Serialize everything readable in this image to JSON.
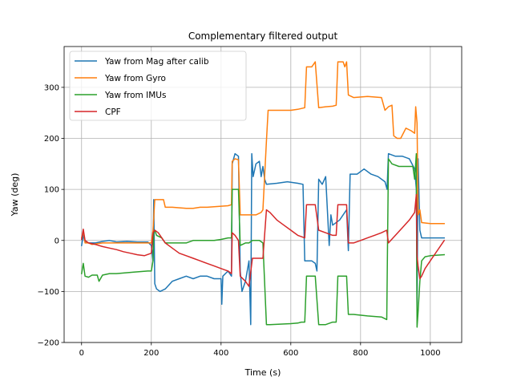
{
  "chart_data": {
    "type": "line",
    "title": "Complementary filtered output",
    "xlabel": "Time (s)",
    "ylabel": "Yaw (deg)",
    "xlim": [
      -50,
      1090
    ],
    "ylim": [
      -200,
      380
    ],
    "xticks": [
      0,
      200,
      400,
      600,
      800,
      1000
    ],
    "yticks": [
      -200,
      -100,
      0,
      100,
      200,
      300
    ],
    "grid": true,
    "legend_position": "upper-left",
    "series": [
      {
        "name": "Yaw from Mag after calib",
        "color": "#1f77b4",
        "points": [
          [
            0,
            -10
          ],
          [
            5,
            10
          ],
          [
            10,
            -3
          ],
          [
            20,
            -5
          ],
          [
            40,
            -5
          ],
          [
            60,
            -2
          ],
          [
            80,
            0
          ],
          [
            100,
            -3
          ],
          [
            130,
            -2
          ],
          [
            160,
            -3
          ],
          [
            190,
            -3
          ],
          [
            200,
            -10
          ],
          [
            205,
            -40
          ],
          [
            207,
            80
          ],
          [
            210,
            -85
          ],
          [
            215,
            -95
          ],
          [
            225,
            -100
          ],
          [
            240,
            -95
          ],
          [
            260,
            -80
          ],
          [
            280,
            -75
          ],
          [
            300,
            -70
          ],
          [
            320,
            -75
          ],
          [
            340,
            -70
          ],
          [
            360,
            -70
          ],
          [
            380,
            -75
          ],
          [
            400,
            -75
          ],
          [
            402,
            -125
          ],
          [
            405,
            -70
          ],
          [
            420,
            -60
          ],
          [
            430,
            -70
          ],
          [
            432,
            150
          ],
          [
            440,
            170
          ],
          [
            450,
            165
          ],
          [
            455,
            -60
          ],
          [
            460,
            -100
          ],
          [
            470,
            -80
          ],
          [
            480,
            -40
          ],
          [
            485,
            -165
          ],
          [
            488,
            170
          ],
          [
            492,
            125
          ],
          [
            500,
            150
          ],
          [
            510,
            155
          ],
          [
            515,
            125
          ],
          [
            520,
            145
          ],
          [
            525,
            120
          ],
          [
            530,
            110
          ],
          [
            560,
            112
          ],
          [
            590,
            115
          ],
          [
            620,
            112
          ],
          [
            635,
            110
          ],
          [
            640,
            -40
          ],
          [
            660,
            -40
          ],
          [
            670,
            -45
          ],
          [
            675,
            -60
          ],
          [
            680,
            120
          ],
          [
            690,
            110
          ],
          [
            700,
            125
          ],
          [
            710,
            -10
          ],
          [
            715,
            50
          ],
          [
            720,
            30
          ],
          [
            740,
            40
          ],
          [
            760,
            60
          ],
          [
            765,
            -20
          ],
          [
            770,
            130
          ],
          [
            790,
            130
          ],
          [
            810,
            140
          ],
          [
            830,
            130
          ],
          [
            850,
            125
          ],
          [
            870,
            115
          ],
          [
            876,
            100
          ],
          [
            880,
            170
          ],
          [
            900,
            165
          ],
          [
            920,
            165
          ],
          [
            940,
            160
          ],
          [
            955,
            140
          ],
          [
            960,
            100
          ],
          [
            962,
            -140
          ],
          [
            965,
            160
          ],
          [
            970,
            20
          ],
          [
            975,
            5
          ],
          [
            985,
            5
          ],
          [
            1000,
            5
          ],
          [
            1020,
            5
          ],
          [
            1040,
            5
          ]
        ]
      },
      {
        "name": "Yaw from Gyro",
        "color": "#ff7f0e",
        "points": [
          [
            0,
            5
          ],
          [
            5,
            18
          ],
          [
            10,
            -5
          ],
          [
            20,
            -5
          ],
          [
            30,
            -8
          ],
          [
            60,
            -5
          ],
          [
            100,
            -5
          ],
          [
            150,
            -5
          ],
          [
            180,
            -5
          ],
          [
            200,
            -5
          ],
          [
            205,
            20
          ],
          [
            210,
            80
          ],
          [
            220,
            80
          ],
          [
            235,
            80
          ],
          [
            240,
            65
          ],
          [
            260,
            65
          ],
          [
            300,
            63
          ],
          [
            320,
            63
          ],
          [
            340,
            65
          ],
          [
            360,
            65
          ],
          [
            400,
            67
          ],
          [
            420,
            68
          ],
          [
            430,
            70
          ],
          [
            432,
            155
          ],
          [
            440,
            160
          ],
          [
            450,
            158
          ],
          [
            455,
            50
          ],
          [
            480,
            50
          ],
          [
            500,
            50
          ],
          [
            515,
            55
          ],
          [
            520,
            60
          ],
          [
            530,
            195
          ],
          [
            535,
            255
          ],
          [
            600,
            255
          ],
          [
            620,
            257
          ],
          [
            640,
            260
          ],
          [
            645,
            340
          ],
          [
            660,
            340
          ],
          [
            670,
            350
          ],
          [
            680,
            260
          ],
          [
            700,
            262
          ],
          [
            720,
            263
          ],
          [
            730,
            265
          ],
          [
            735,
            350
          ],
          [
            750,
            350
          ],
          [
            755,
            340
          ],
          [
            760,
            350
          ],
          [
            765,
            285
          ],
          [
            780,
            280
          ],
          [
            820,
            282
          ],
          [
            860,
            280
          ],
          [
            870,
            255
          ],
          [
            880,
            262
          ],
          [
            890,
            265
          ],
          [
            895,
            205
          ],
          [
            905,
            200
          ],
          [
            915,
            200
          ],
          [
            930,
            220
          ],
          [
            945,
            215
          ],
          [
            955,
            210
          ],
          [
            958,
            262
          ],
          [
            962,
            230
          ],
          [
            965,
            50
          ],
          [
            970,
            60
          ],
          [
            975,
            35
          ],
          [
            1000,
            33
          ],
          [
            1040,
            33
          ]
        ]
      },
      {
        "name": "Yaw from IMUs",
        "color": "#2ca02c",
        "points": [
          [
            0,
            -65
          ],
          [
            5,
            -45
          ],
          [
            10,
            -70
          ],
          [
            20,
            -72
          ],
          [
            30,
            -68
          ],
          [
            45,
            -68
          ],
          [
            50,
            -80
          ],
          [
            60,
            -68
          ],
          [
            80,
            -65
          ],
          [
            100,
            -65
          ],
          [
            150,
            -62
          ],
          [
            190,
            -60
          ],
          [
            200,
            -60
          ],
          [
            205,
            -40
          ],
          [
            207,
            15
          ],
          [
            210,
            20
          ],
          [
            215,
            10
          ],
          [
            230,
            5
          ],
          [
            240,
            -5
          ],
          [
            260,
            -5
          ],
          [
            300,
            -5
          ],
          [
            320,
            0
          ],
          [
            340,
            0
          ],
          [
            380,
            0
          ],
          [
            400,
            2
          ],
          [
            420,
            5
          ],
          [
            430,
            5
          ],
          [
            432,
            100
          ],
          [
            440,
            100
          ],
          [
            450,
            100
          ],
          [
            455,
            -10
          ],
          [
            470,
            -5
          ],
          [
            480,
            -5
          ],
          [
            490,
            0
          ],
          [
            500,
            0
          ],
          [
            510,
            0
          ],
          [
            520,
            -5
          ],
          [
            530,
            -165
          ],
          [
            540,
            -165
          ],
          [
            600,
            -163
          ],
          [
            620,
            -162
          ],
          [
            630,
            -160
          ],
          [
            640,
            -160
          ],
          [
            645,
            -70
          ],
          [
            660,
            -70
          ],
          [
            670,
            -70
          ],
          [
            680,
            -165
          ],
          [
            700,
            -165
          ],
          [
            720,
            -160
          ],
          [
            730,
            -160
          ],
          [
            735,
            -70
          ],
          [
            750,
            -70
          ],
          [
            760,
            -70
          ],
          [
            765,
            -145
          ],
          [
            780,
            -145
          ],
          [
            820,
            -148
          ],
          [
            860,
            -150
          ],
          [
            875,
            -155
          ],
          [
            880,
            160
          ],
          [
            890,
            150
          ],
          [
            910,
            145
          ],
          [
            930,
            145
          ],
          [
            950,
            145
          ],
          [
            955,
            120
          ],
          [
            960,
            170
          ],
          [
            962,
            -170
          ],
          [
            965,
            -140
          ],
          [
            970,
            -80
          ],
          [
            975,
            -40
          ],
          [
            985,
            -32
          ],
          [
            1000,
            -30
          ],
          [
            1040,
            -28
          ]
        ]
      },
      {
        "name": "CPF",
        "color": "#d62728",
        "points": [
          [
            0,
            2
          ],
          [
            5,
            22
          ],
          [
            10,
            0
          ],
          [
            20,
            -5
          ],
          [
            40,
            -8
          ],
          [
            60,
            -12
          ],
          [
            80,
            -15
          ],
          [
            100,
            -18
          ],
          [
            120,
            -22
          ],
          [
            140,
            -25
          ],
          [
            160,
            -28
          ],
          [
            180,
            -30
          ],
          [
            200,
            -25
          ],
          [
            205,
            15
          ],
          [
            210,
            20
          ],
          [
            220,
            15
          ],
          [
            230,
            5
          ],
          [
            240,
            -5
          ],
          [
            260,
            -15
          ],
          [
            280,
            -25
          ],
          [
            300,
            -30
          ],
          [
            320,
            -35
          ],
          [
            340,
            -40
          ],
          [
            360,
            -45
          ],
          [
            380,
            -50
          ],
          [
            400,
            -55
          ],
          [
            420,
            -60
          ],
          [
            430,
            -65
          ],
          [
            432,
            15
          ],
          [
            440,
            10
          ],
          [
            450,
            0
          ],
          [
            455,
            -70
          ],
          [
            470,
            -80
          ],
          [
            480,
            -90
          ],
          [
            490,
            -35
          ],
          [
            500,
            -35
          ],
          [
            510,
            -35
          ],
          [
            520,
            -35
          ],
          [
            530,
            60
          ],
          [
            540,
            55
          ],
          [
            560,
            40
          ],
          [
            580,
            30
          ],
          [
            600,
            20
          ],
          [
            620,
            10
          ],
          [
            640,
            5
          ],
          [
            645,
            70
          ],
          [
            660,
            70
          ],
          [
            670,
            70
          ],
          [
            680,
            20
          ],
          [
            700,
            15
          ],
          [
            720,
            10
          ],
          [
            730,
            10
          ],
          [
            735,
            70
          ],
          [
            750,
            70
          ],
          [
            760,
            70
          ],
          [
            765,
            -5
          ],
          [
            780,
            -5
          ],
          [
            800,
            0
          ],
          [
            820,
            5
          ],
          [
            840,
            10
          ],
          [
            860,
            15
          ],
          [
            875,
            20
          ],
          [
            880,
            -5
          ],
          [
            900,
            10
          ],
          [
            920,
            25
          ],
          [
            940,
            40
          ],
          [
            955,
            55
          ],
          [
            960,
            90
          ],
          [
            962,
            -30
          ],
          [
            965,
            -50
          ],
          [
            970,
            -75
          ],
          [
            975,
            -70
          ],
          [
            985,
            -55
          ],
          [
            1000,
            -40
          ],
          [
            1020,
            -20
          ],
          [
            1040,
            0
          ]
        ]
      }
    ]
  }
}
